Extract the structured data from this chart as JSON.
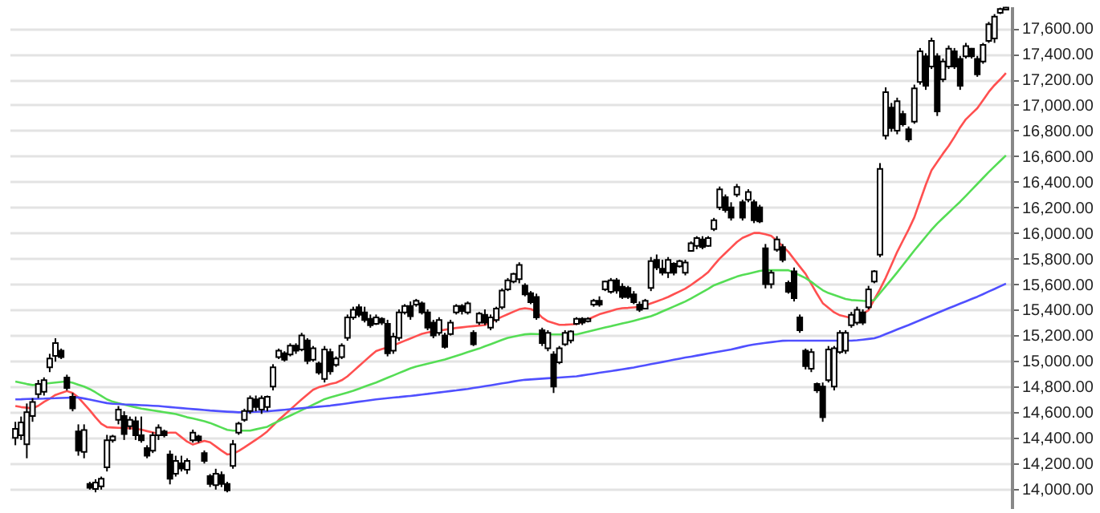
{
  "chart_data": {
    "type": "candlestick",
    "color": "#000000",
    "categories": [
      null,
      null,
      null,
      null,
      null,
      null,
      null,
      null,
      null,
      null,
      null,
      null,
      null,
      null,
      null,
      null,
      null,
      null,
      null,
      null,
      null,
      null,
      null,
      null,
      null,
      null,
      null,
      null,
      null,
      null,
      null,
      null,
      null,
      null,
      null,
      null,
      null,
      null,
      null,
      null,
      null,
      null,
      null,
      null,
      null,
      null,
      null,
      null,
      null,
      null,
      null,
      null,
      null,
      null,
      null,
      null,
      null,
      null,
      null,
      null,
      null,
      null,
      null,
      null,
      null,
      null,
      null,
      null,
      null,
      null,
      null,
      null,
      null,
      null,
      null,
      null,
      null,
      null,
      null,
      null,
      null,
      null,
      null,
      null,
      null,
      null,
      null,
      null,
      null,
      null,
      null,
      null,
      null,
      null,
      null,
      null,
      null,
      null,
      null,
      null,
      null,
      null,
      null,
      null,
      null,
      null,
      null,
      null,
      null,
      null,
      null,
      null,
      null,
      null,
      null,
      null,
      null,
      null,
      null,
      null,
      null,
      null,
      null,
      null,
      null,
      null,
      null,
      null,
      null,
      null,
      null,
      null,
      null,
      null,
      null,
      null,
      null,
      null,
      null,
      null,
      null,
      null,
      null,
      null,
      null,
      null,
      null,
      null,
      null,
      null,
      null,
      null,
      null,
      null,
      null,
      null,
      null,
      null,
      null,
      null,
      null,
      null,
      null,
      null,
      null,
      null,
      null,
      null,
      null,
      null,
      null,
      null,
      null,
      null
    ],
    "ohlc": [
      [
        14400,
        14525,
        14342,
        14470
      ],
      [
        14420,
        14566,
        14383,
        14520
      ],
      [
        14350,
        14668,
        14240,
        14600
      ],
      [
        14570,
        14709,
        14525,
        14680
      ],
      [
        14740,
        14852,
        14709,
        14820
      ],
      [
        14760,
        14872,
        14730,
        14850
      ],
      [
        14950,
        15056,
        14913,
        15020
      ],
      [
        15040,
        15178,
        14995,
        15140
      ],
      [
        15080,
        15097,
        15015,
        15030
      ],
      [
        14870,
        14893,
        14770,
        14790
      ],
      [
        14720,
        14750,
        14607,
        14630
      ],
      [
        14450,
        14505,
        14260,
        14300
      ],
      [
        14290,
        14505,
        14240,
        14460
      ],
      [
        14040,
        14056,
        13995,
        14010
      ],
      [
        14000,
        14076,
        13974,
        14050
      ],
      [
        14020,
        14097,
        13995,
        14080
      ],
      [
        14170,
        14423,
        14137,
        14380
      ],
      [
        14380,
        14423,
        14362,
        14410
      ],
      [
        14540,
        14648,
        14505,
        14620
      ],
      [
        14570,
        14607,
        14383,
        14430
      ],
      [
        14490,
        14566,
        14464,
        14540
      ],
      [
        14530,
        14566,
        14383,
        14420
      ],
      [
        14420,
        14566,
        14362,
        14380
      ],
      [
        14320,
        14342,
        14240,
        14260
      ],
      [
        14300,
        14444,
        14281,
        14420
      ],
      [
        14420,
        14505,
        14383,
        14480
      ],
      [
        14450,
        14464,
        14403,
        14420
      ],
      [
        14270,
        14301,
        14036,
        14080
      ],
      [
        14120,
        14260,
        14097,
        14220
      ],
      [
        14200,
        14260,
        14137,
        14160
      ],
      [
        14150,
        14240,
        14117,
        14220
      ],
      [
        14380,
        14464,
        14362,
        14440
      ],
      [
        14410,
        14423,
        14362,
        14380
      ],
      [
        14280,
        14301,
        14199,
        14220
      ],
      [
        14100,
        14117,
        14015,
        14040
      ],
      [
        14030,
        14158,
        13995,
        14120
      ],
      [
        14110,
        14137,
        14015,
        14040
      ],
      [
        14040,
        14056,
        13974,
        13990
      ],
      [
        14180,
        14383,
        14158,
        14350
      ],
      [
        14440,
        14525,
        14423,
        14510
      ],
      [
        14540,
        14627,
        14525,
        14610
      ],
      [
        14610,
        14730,
        14587,
        14710
      ],
      [
        14700,
        14730,
        14607,
        14640
      ],
      [
        14620,
        14730,
        14587,
        14710
      ],
      [
        14640,
        14730,
        14607,
        14720
      ],
      [
        14800,
        14975,
        14770,
        14950
      ],
      [
        15030,
        15097,
        15015,
        15080
      ],
      [
        15060,
        15076,
        14995,
        15010
      ],
      [
        15050,
        15138,
        15036,
        15120
      ],
      [
        15120,
        15138,
        15056,
        15080
      ],
      [
        15090,
        15220,
        15076,
        15200
      ],
      [
        15160,
        15178,
        14975,
        15000
      ],
      [
        15010,
        15117,
        14995,
        15100
      ],
      [
        14980,
        14995,
        14893,
        14910
      ],
      [
        14860,
        15117,
        14832,
        15090
      ],
      [
        15070,
        15097,
        14893,
        14920
      ],
      [
        14970,
        15036,
        14954,
        15020
      ],
      [
        15030,
        15138,
        15015,
        15120
      ],
      [
        15180,
        15363,
        15158,
        15340
      ],
      [
        15340,
        15424,
        15322,
        15400
      ],
      [
        15420,
        15444,
        15342,
        15360
      ],
      [
        15380,
        15424,
        15301,
        15320
      ],
      [
        15330,
        15363,
        15260,
        15280
      ],
      [
        15290,
        15363,
        15281,
        15340
      ],
      [
        15330,
        15342,
        15281,
        15300
      ],
      [
        15290,
        15322,
        15036,
        15060
      ],
      [
        15080,
        15220,
        15056,
        15190
      ],
      [
        15180,
        15403,
        15158,
        15380
      ],
      [
        15380,
        15444,
        15363,
        15430
      ],
      [
        15430,
        15465,
        15322,
        15350
      ],
      [
        15440,
        15485,
        15424,
        15470
      ],
      [
        15450,
        15465,
        15363,
        15380
      ],
      [
        15380,
        15403,
        15240,
        15260
      ],
      [
        15300,
        15322,
        15178,
        15200
      ],
      [
        15220,
        15342,
        15199,
        15320
      ],
      [
        15200,
        15220,
        15097,
        15110
      ],
      [
        15210,
        15322,
        15199,
        15300
      ],
      [
        15380,
        15444,
        15363,
        15430
      ],
      [
        15430,
        15444,
        15363,
        15390
      ],
      [
        15380,
        15465,
        15363,
        15450
      ],
      [
        15220,
        15240,
        15117,
        15130
      ],
      [
        15300,
        15383,
        15281,
        15370
      ],
      [
        15360,
        15403,
        15281,
        15300
      ],
      [
        15260,
        15363,
        15240,
        15340
      ],
      [
        15320,
        15424,
        15301,
        15410
      ],
      [
        15420,
        15567,
        15403,
        15550
      ],
      [
        15560,
        15648,
        15546,
        15630
      ],
      [
        15620,
        15689,
        15607,
        15680
      ],
      [
        15640,
        15771,
        15607,
        15750
      ],
      [
        15590,
        15607,
        15505,
        15520
      ],
      [
        15530,
        15546,
        15444,
        15460
      ],
      [
        15500,
        15526,
        15322,
        15340
      ],
      [
        15240,
        15260,
        15117,
        15140
      ],
      [
        15100,
        15240,
        15076,
        15220
      ],
      [
        15050,
        15076,
        14750,
        14800
      ],
      [
        14990,
        15117,
        14975,
        15100
      ],
      [
        15130,
        15240,
        15117,
        15220
      ],
      [
        15160,
        15240,
        15138,
        15230
      ],
      [
        15290,
        15342,
        15281,
        15330
      ],
      [
        15330,
        15342,
        15281,
        15300
      ],
      [
        15310,
        15342,
        15301,
        15330
      ],
      [
        15440,
        15485,
        15424,
        15470
      ],
      [
        15470,
        15505,
        15424,
        15440
      ],
      [
        15560,
        15628,
        15546,
        15620
      ],
      [
        15540,
        15648,
        15526,
        15630
      ],
      [
        15630,
        15648,
        15526,
        15550
      ],
      [
        15580,
        15607,
        15485,
        15500
      ],
      [
        15570,
        15587,
        15485,
        15500
      ],
      [
        15520,
        15546,
        15444,
        15460
      ],
      [
        15440,
        15465,
        15383,
        15400
      ],
      [
        15410,
        15485,
        15403,
        15470
      ],
      [
        15570,
        15812,
        15546,
        15780
      ],
      [
        15790,
        15832,
        15710,
        15730
      ],
      [
        15720,
        15791,
        15669,
        15690
      ],
      [
        15690,
        15812,
        15648,
        15790
      ],
      [
        15760,
        15771,
        15669,
        15690
      ],
      [
        15740,
        15791,
        15730,
        15780
      ],
      [
        15690,
        15791,
        15669,
        15770
      ],
      [
        15860,
        15934,
        15853,
        15920
      ],
      [
        15900,
        15975,
        15873,
        15960
      ],
      [
        15950,
        15975,
        15873,
        15890
      ],
      [
        15900,
        15975,
        15893,
        15960
      ],
      [
        16030,
        16118,
        16015,
        16100
      ],
      [
        16200,
        16363,
        16179,
        16340
      ],
      [
        16280,
        16301,
        16159,
        16180
      ],
      [
        16200,
        16240,
        16097,
        16120
      ],
      [
        16300,
        16383,
        16281,
        16360
      ],
      [
        16240,
        16260,
        16097,
        16120
      ],
      [
        16260,
        16342,
        16240,
        16320
      ],
      [
        16240,
        16260,
        16077,
        16100
      ],
      [
        16200,
        16220,
        16077,
        16090
      ],
      [
        15880,
        15914,
        15567,
        15600
      ],
      [
        15600,
        15710,
        15567,
        15690
      ],
      [
        15870,
        15975,
        15853,
        15950
      ],
      [
        15890,
        15914,
        15771,
        15790
      ],
      [
        15610,
        15628,
        15526,
        15540
      ],
      [
        15700,
        15730,
        15465,
        15490
      ],
      [
        15340,
        15363,
        15220,
        15240
      ],
      [
        15080,
        15097,
        14934,
        14960
      ],
      [
        14940,
        15097,
        14913,
        15070
      ],
      [
        14820,
        14832,
        14750,
        14770
      ],
      [
        14800,
        14832,
        14525,
        14560
      ],
      [
        14850,
        15117,
        14832,
        15090
      ],
      [
        14800,
        15117,
        14770,
        15100
      ],
      [
        15070,
        15240,
        15056,
        15220
      ],
      [
        15080,
        15240,
        15056,
        15220
      ],
      [
        15280,
        15383,
        15260,
        15360
      ],
      [
        15300,
        15424,
        15281,
        15400
      ],
      [
        15380,
        15403,
        15281,
        15300
      ],
      [
        15420,
        15587,
        15403,
        15560
      ],
      [
        15620,
        15710,
        15607,
        15700
      ],
      [
        15830,
        16546,
        15811,
        16500
      ],
      [
        16760,
        17138,
        16730,
        17100
      ],
      [
        16980,
        17016,
        16791,
        16820
      ],
      [
        16800,
        17057,
        16771,
        17030
      ],
      [
        16930,
        16955,
        16832,
        16850
      ],
      [
        16810,
        16832,
        16710,
        16730
      ],
      [
        16870,
        17159,
        16853,
        17130
      ],
      [
        17180,
        17445,
        17159,
        17420
      ],
      [
        17380,
        17404,
        17118,
        17150
      ],
      [
        17300,
        17526,
        17281,
        17500
      ],
      [
        17380,
        17404,
        16914,
        16950
      ],
      [
        17200,
        17363,
        17179,
        17340
      ],
      [
        17300,
        17465,
        17281,
        17440
      ],
      [
        17420,
        17445,
        17281,
        17300
      ],
      [
        17360,
        17383,
        17118,
        17150
      ],
      [
        17380,
        17485,
        17363,
        17460
      ],
      [
        17440,
        17445,
        17363,
        17380
      ],
      [
        17360,
        17383,
        17220,
        17240
      ],
      [
        17340,
        17485,
        17322,
        17470
      ],
      [
        17500,
        17649,
        17485,
        17630
      ],
      [
        17520,
        17710,
        17485,
        17690
      ],
      [
        17720,
        17760,
        17710,
        17750
      ],
      [
        17745,
        17765,
        17740,
        17760
      ]
    ],
    "series": [
      {
        "type": "line",
        "color": "#ff5050",
        "values": [
          14648,
          14640,
          14635,
          14630,
          14650,
          14680,
          14705,
          14735,
          14750,
          14765,
          14750,
          14715,
          14665,
          14615,
          14560,
          14510,
          14483,
          14480,
          14478,
          14476,
          14474,
          14472,
          14463,
          14452,
          14442,
          14431,
          14436,
          14440,
          14440,
          14405,
          14370,
          14347,
          14362,
          14376,
          14365,
          14333,
          14300,
          14270,
          14275,
          14297,
          14325,
          14355,
          14385,
          14415,
          14450,
          14495,
          14540,
          14580,
          14620,
          14660,
          14700,
          14738,
          14775,
          14795,
          14806,
          14820,
          14830,
          14850,
          14880,
          14920,
          14960,
          15000,
          15040,
          15078,
          15093,
          15106,
          15120,
          15140,
          15158,
          15176,
          15194,
          15212,
          15223,
          15230,
          15237,
          15244,
          15251,
          15258,
          15263,
          15268,
          15272,
          15276,
          15281,
          15303,
          15325,
          15346,
          15365,
          15385,
          15404,
          15412,
          15406,
          15385,
          15340,
          15310,
          15296,
          15282,
          15283,
          15286,
          15289,
          15305,
          15325,
          15345,
          15365,
          15378,
          15391,
          15404,
          15412,
          15415,
          15419,
          15423,
          15434,
          15450,
          15466,
          15482,
          15500,
          15522,
          15543,
          15565,
          15594,
          15626,
          15658,
          15694,
          15748,
          15800,
          15843,
          15886,
          15929,
          15962,
          15981,
          16000,
          16000,
          15990,
          15978,
          15940,
          15897,
          15853,
          15795,
          15737,
          15681,
          15603,
          15525,
          15452,
          15416,
          15380,
          15357,
          15346,
          15335,
          15343,
          15370,
          15396,
          15480,
          15560,
          15650,
          15750,
          15852,
          15940,
          16027,
          16122,
          16250,
          16377,
          16490,
          16555,
          16620,
          16680,
          16750,
          16825,
          16888,
          16932,
          16975,
          17038,
          17102,
          17155,
          17200,
          17250
        ]
      },
      {
        "type": "line",
        "color": "#55dd55",
        "values": [
          14840,
          14830,
          14820,
          14812,
          14816,
          14822,
          14827,
          14832,
          14836,
          14840,
          14830,
          14815,
          14800,
          14780,
          14755,
          14727,
          14700,
          14682,
          14671,
          14660,
          14649,
          14638,
          14628,
          14621,
          14614,
          14607,
          14600,
          14593,
          14586,
          14573,
          14560,
          14551,
          14541,
          14530,
          14516,
          14498,
          14480,
          14462,
          14456,
          14456,
          14456,
          14456,
          14466,
          14476,
          14486,
          14510,
          14530,
          14552,
          14573,
          14594,
          14616,
          14637,
          14659,
          14680,
          14702,
          14715,
          14728,
          14741,
          14754,
          14767,
          14783,
          14800,
          14816,
          14832,
          14850,
          14869,
          14887,
          14906,
          14924,
          14943,
          14957,
          14968,
          14979,
          14990,
          15000,
          15011,
          15026,
          15040,
          15054,
          15069,
          15083,
          15097,
          15115,
          15131,
          15148,
          15165,
          15181,
          15190,
          15199,
          15208,
          15211,
          15210,
          15209,
          15208,
          15207,
          15207,
          15207,
          15207,
          15207,
          15218,
          15229,
          15240,
          15251,
          15262,
          15272,
          15283,
          15293,
          15303,
          15314,
          15326,
          15338,
          15350,
          15367,
          15387,
          15406,
          15426,
          15445,
          15465,
          15488,
          15513,
          15539,
          15564,
          15591,
          15608,
          15625,
          15642,
          15659,
          15672,
          15682,
          15693,
          15704,
          15709,
          15709,
          15709,
          15709,
          15709,
          15690,
          15669,
          15648,
          15618,
          15585,
          15553,
          15531,
          15516,
          15500,
          15485,
          15476,
          15473,
          15470,
          15468,
          15476,
          15530,
          15584,
          15637,
          15692,
          15749,
          15806,
          15863,
          15917,
          15971,
          16025,
          16074,
          16117,
          16159,
          16202,
          16244,
          16290,
          16337,
          16383,
          16430,
          16476,
          16520,
          16563,
          16606
        ]
      },
      {
        "type": "line",
        "color": "#5050ff",
        "values": [
          14700,
          14701,
          14703,
          14704,
          14705,
          14706,
          14708,
          14709,
          14711,
          14713,
          14715,
          14715,
          14707,
          14698,
          14689,
          14680,
          14671,
          14666,
          14664,
          14661,
          14659,
          14657,
          14655,
          14653,
          14650,
          14648,
          14644,
          14640,
          14636,
          14632,
          14628,
          14624,
          14621,
          14617,
          14613,
          14610,
          14607,
          14604,
          14602,
          14599,
          14600,
          14602,
          14603,
          14605,
          14607,
          14611,
          14615,
          14619,
          14623,
          14627,
          14631,
          14635,
          14639,
          14643,
          14647,
          14651,
          14657,
          14663,
          14669,
          14676,
          14682,
          14688,
          14694,
          14700,
          14705,
          14709,
          14714,
          14718,
          14723,
          14727,
          14732,
          14738,
          14743,
          14749,
          14754,
          14760,
          14765,
          14770,
          14776,
          14781,
          14789,
          14796,
          14803,
          14810,
          14818,
          14825,
          14832,
          14840,
          14847,
          14853,
          14856,
          14859,
          14862,
          14865,
          14868,
          14871,
          14874,
          14877,
          14880,
          14887,
          14894,
          14901,
          14908,
          14915,
          14921,
          14928,
          14935,
          14942,
          14949,
          14958,
          14966,
          14975,
          14984,
          14992,
          15001,
          15010,
          15018,
          15027,
          15034,
          15042,
          15050,
          15058,
          15066,
          15074,
          15082,
          15090,
          15100,
          15111,
          15121,
          15129,
          15135,
          15141,
          15147,
          15153,
          15158,
          15159,
          15159,
          15159,
          15159,
          15159,
          15159,
          15159,
          15159,
          15159,
          15159,
          15159,
          15159,
          15162,
          15167,
          15172,
          15178,
          15192,
          15210,
          15228,
          15246,
          15264,
          15281,
          15300,
          15318,
          15337,
          15356,
          15375,
          15394,
          15412,
          15430,
          15448,
          15466,
          15484,
          15502,
          15522,
          15543,
          15563,
          15584,
          15604
        ]
      }
    ],
    "ylim": [
      13850,
      17770
    ],
    "yticks": [
      {
        "value": 14000,
        "label": "14,000.00"
      },
      {
        "value": 14200,
        "label": "14,200.00"
      },
      {
        "value": 14400,
        "label": "14,400.00"
      },
      {
        "value": 14600,
        "label": "14,600.00"
      },
      {
        "value": 14800,
        "label": "14,800.00"
      },
      {
        "value": 15000,
        "label": "15,000.00"
      },
      {
        "value": 15200,
        "label": "15,200.00"
      },
      {
        "value": 15400,
        "label": "15,400.00"
      },
      {
        "value": 15600,
        "label": "15,600.00"
      },
      {
        "value": 15800,
        "label": "15,800.00"
      },
      {
        "value": 16000,
        "label": "16,000.00"
      },
      {
        "value": 16200,
        "label": "16,200.00"
      },
      {
        "value": 16400,
        "label": "16,400.00"
      },
      {
        "value": 16600,
        "label": "16,600.00"
      },
      {
        "value": 16800,
        "label": "16,800.00"
      },
      {
        "value": 17000,
        "label": "17,000.00"
      },
      {
        "value": 17200,
        "label": "17,200.00"
      },
      {
        "value": 17400,
        "label": "17,400.00"
      },
      {
        "value": 17600,
        "label": "17,600.00"
      }
    ],
    "grid": "y",
    "tick_labels": "y"
  }
}
